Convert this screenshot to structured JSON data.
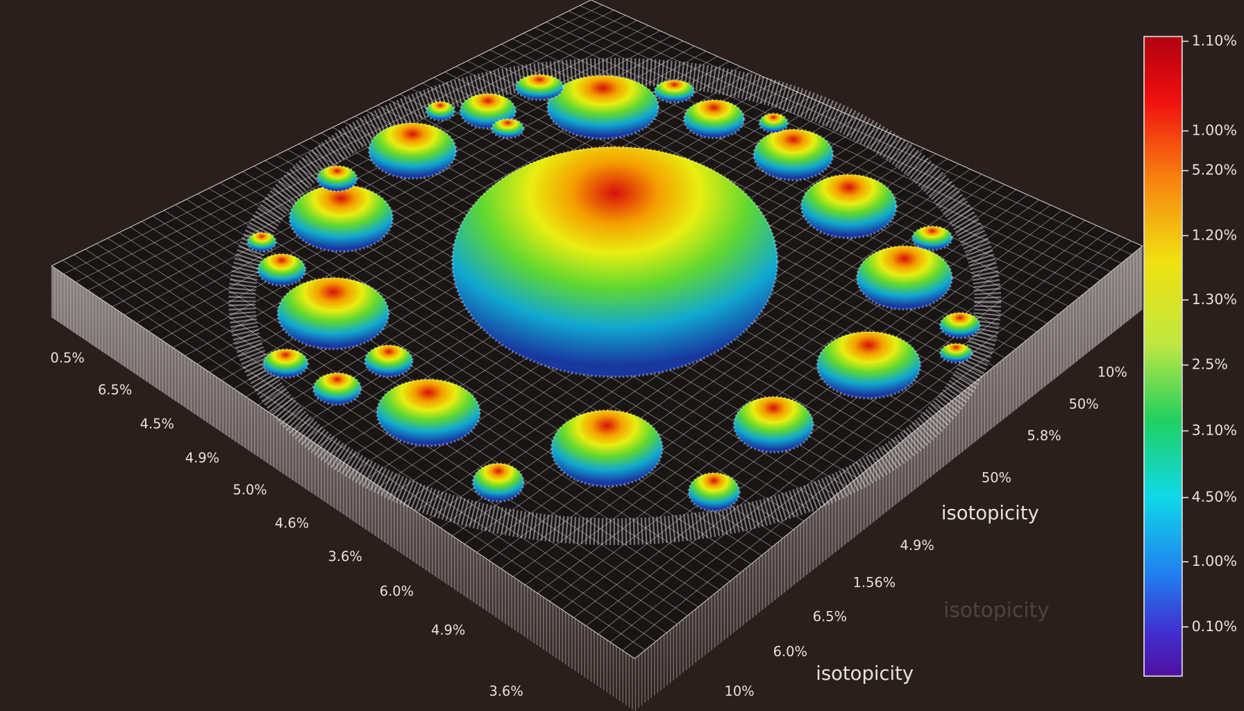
{
  "chart_data": {
    "type": "surface3d",
    "left_axis_labels": [
      "0.5%",
      "6.5%",
      "4.5%",
      "4.9%",
      "5.0%",
      "4.6%",
      "3.6%",
      "6.0%",
      "4.9%",
      "3.6%"
    ],
    "right_axis_labels": [
      "10%",
      "50%",
      "5.8%",
      "50%",
      "4.9%",
      "1.56%",
      "6.5%",
      "6.0%",
      "10%"
    ],
    "right_axis_title": "isotopicity",
    "front_axis_title": "isotopicity",
    "faded_axis_title": "isotopicity",
    "colorbar_labels": [
      "1.10%",
      "1.00%",
      "5.20%",
      "1.20%",
      "1.30%",
      "2.5%",
      "3.10%",
      "4.50%",
      "1.00%",
      "0.10%"
    ],
    "grid": true
  }
}
